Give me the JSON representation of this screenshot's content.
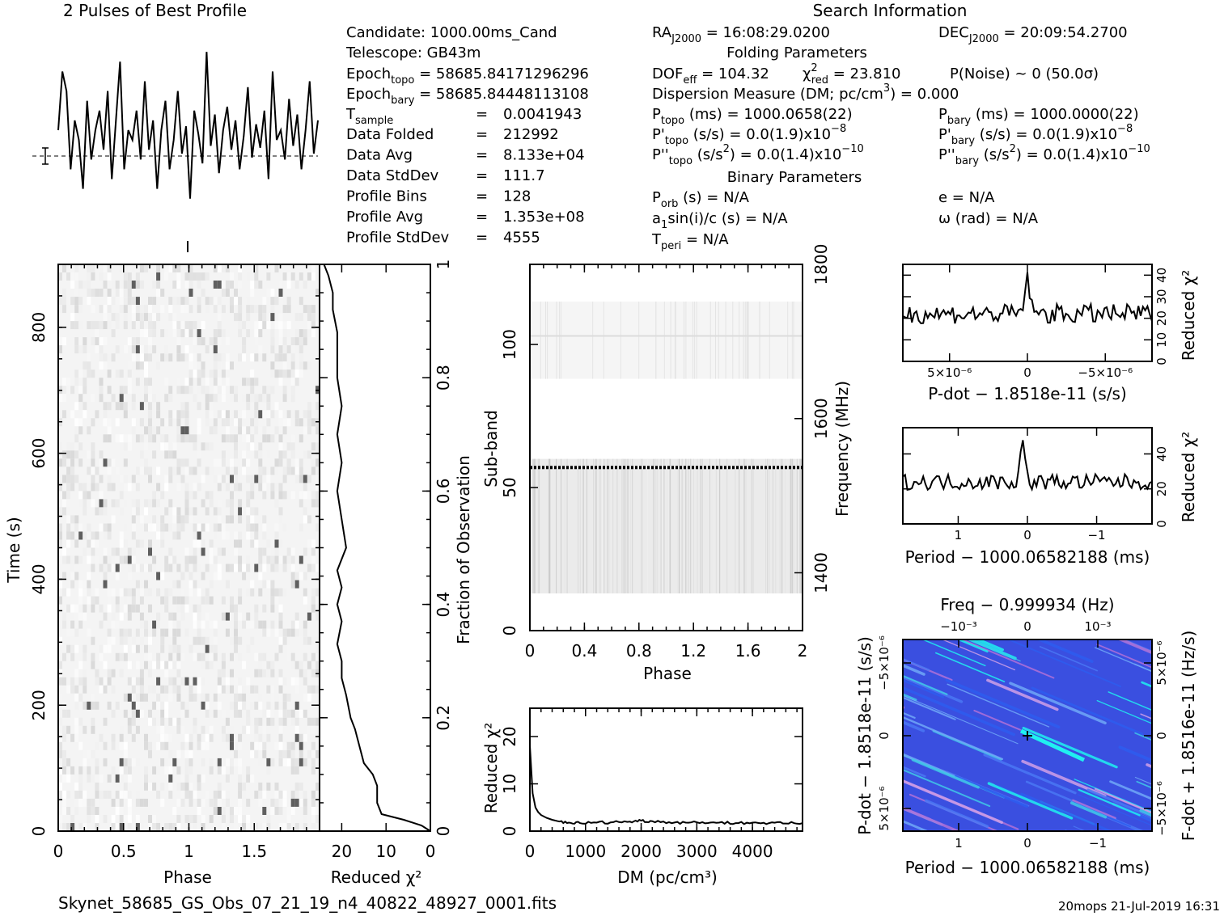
{
  "chart_data": [
    {
      "type": "line",
      "title": "2 Pulses of Best Profile",
      "xlabel": "",
      "ylabel": "",
      "xlim": [
        0,
        2
      ],
      "note": "mean level shown as dashed line with error bar",
      "samples": [
        0.5,
        0.8,
        0.7,
        0.3,
        0.55,
        0.45,
        0.2,
        0.65,
        0.35,
        0.5,
        0.6,
        0.4,
        0.7,
        0.25,
        0.55,
        0.85,
        0.3,
        0.5,
        0.45,
        0.6,
        0.35,
        0.75,
        0.4,
        0.55,
        0.2,
        0.5,
        0.65,
        0.3,
        0.45,
        0.7,
        0.38,
        0.52,
        0.15,
        0.6,
        0.48,
        0.33,
        0.9,
        0.42,
        0.58,
        0.28,
        0.5,
        0.62,
        0.4,
        0.55,
        0.3,
        0.47,
        0.72,
        0.36,
        0.53,
        0.41,
        0.6,
        0.25,
        0.8,
        0.45,
        0.5,
        0.35,
        0.66,
        0.42,
        0.58,
        0.3,
        0.5,
        0.75,
        0.38,
        0.55
      ]
    },
    {
      "type": "heatmap",
      "title": "",
      "xlabel": "Phase",
      "ylabel": "Time (s)",
      "xlim": [
        0,
        2
      ],
      "ylim": [
        0,
        900
      ],
      "x_ticks": [
        "0",
        "0.5",
        "1",
        "1.5"
      ],
      "y_ticks": [
        "0",
        "200",
        "400",
        "600",
        "800"
      ],
      "colormap": "grayscale"
    },
    {
      "type": "line",
      "title": "",
      "xlabel": "Reduced χ²",
      "ylabel": "Fraction of Observation",
      "xlim": [
        25,
        0
      ],
      "ylim": [
        0,
        1
      ],
      "x_ticks": [
        "20",
        "10",
        "0"
      ],
      "y_ticks": [
        "0",
        "0.2",
        "0.4",
        "0.6",
        "0.8",
        "1"
      ],
      "x": [
        0,
        2,
        6,
        11,
        12,
        12,
        13,
        15,
        16,
        17,
        18,
        19,
        20,
        20,
        21,
        20,
        21,
        20,
        21,
        19,
        20,
        21,
        20,
        21,
        20,
        21,
        21,
        21,
        22,
        22,
        23,
        24
      ],
      "y": [
        0,
        0.01,
        0.02,
        0.03,
        0.05,
        0.08,
        0.1,
        0.12,
        0.15,
        0.18,
        0.2,
        0.24,
        0.27,
        0.3,
        0.33,
        0.37,
        0.4,
        0.43,
        0.46,
        0.5,
        0.55,
        0.6,
        0.65,
        0.7,
        0.75,
        0.8,
        0.85,
        0.88,
        0.92,
        0.95,
        0.98,
        1.0
      ]
    },
    {
      "type": "heatmap",
      "title": "",
      "xlabel": "Phase",
      "ylabel": "Sub-band",
      "ylabel_right": "Frequency (MHz)",
      "xlim": [
        0,
        2
      ],
      "ylim": [
        0,
        128
      ],
      "x_ticks": [
        "0",
        "0.4",
        "0.8",
        "1.2",
        "1.6",
        "2"
      ],
      "y_ticks": [
        "0",
        "50",
        "100"
      ],
      "y_ticks_right": [
        "1400",
        "1600",
        "1800"
      ],
      "colormap": "grayscale",
      "bright_row": 57
    },
    {
      "type": "line",
      "title": "",
      "xlabel": "DM (pc/cm³)",
      "ylabel": "Reduced χ²",
      "xlim": [
        0,
        4900
      ],
      "ylim": [
        0,
        26
      ],
      "x_ticks": [
        "0",
        "1000",
        "2000",
        "3000",
        "4000"
      ],
      "y_ticks": [
        "0",
        "10",
        "20"
      ],
      "x": [
        0,
        50,
        100,
        150,
        200,
        300,
        400,
        500,
        700,
        900,
        1200,
        1500,
        1800,
        2000,
        2200,
        2500,
        2800,
        3100,
        3400,
        3700,
        4000,
        4300,
        4600,
        4900
      ],
      "y": [
        18,
        8,
        5,
        4,
        3.4,
        2.8,
        2.4,
        2.1,
        1.8,
        1.7,
        1.8,
        1.9,
        2.0,
        2.2,
        2.1,
        1.9,
        1.8,
        1.9,
        1.8,
        1.7,
        1.8,
        1.7,
        1.6,
        1.7
      ]
    },
    {
      "type": "line",
      "title": "",
      "xlabel": "P-dot − 1.8518e-11 (s/s)",
      "ylabel": "Reduced χ²",
      "xlim": [
        8e-06,
        -8e-06
      ],
      "ylim": [
        0,
        45
      ],
      "x_ticks": [
        "5×10⁻⁶",
        "0",
        "−5×10⁻⁶"
      ],
      "y_ticks": [
        "0",
        "10",
        "20",
        "30",
        "40"
      ],
      "peak": {
        "x": 0,
        "y": 40
      },
      "baseline": 22
    },
    {
      "type": "line",
      "title": "",
      "xlabel": "Period − 1000.06582188 (ms)",
      "ylabel": "Reduced χ²",
      "xlim": [
        1.8,
        -1.8
      ],
      "ylim": [
        0,
        55
      ],
      "x_ticks": [
        "1",
        "0",
        "−1"
      ],
      "y_ticks": [
        "0",
        "20",
        "40"
      ],
      "peak": {
        "x": 0.07,
        "y": 47
      },
      "baseline": 24
    },
    {
      "type": "heatmap",
      "title": "Freq − 0.999934 (Hz)",
      "xlabel": "Period − 1000.06582188 (ms)",
      "ylabel": "P-dot − 1.8518e-11 (s/s)",
      "ylabel_right": "F-dot + 1.8516e-11 (Hz/s)",
      "x_ticks": [
        "1",
        "0",
        "−1"
      ],
      "x_ticks_top": [
        "−10⁻³",
        "0",
        "10⁻³"
      ],
      "y_ticks": [
        "5×10⁻⁶",
        "0",
        "−5×10⁻⁶"
      ],
      "y_ticks_right": [
        "−5×10⁻⁶",
        "0",
        "5×10⁻⁶"
      ],
      "colormap": "blue-cyan-pink",
      "marker": "+"
    }
  ],
  "search_info": {
    "heading": "Search Information",
    "ra_label": "RA",
    "ra_sub": "J2000",
    "ra_value": " = 16:08:29.0200",
    "dec_label": "DEC",
    "dec_sub": "J2000",
    "dec_value": " = 20:09:54.2700"
  },
  "candidate": {
    "candidate": "Candidate:  1000.00ms_Cand",
    "telescope": "Telescope:  GB43m",
    "epoch_topo_label": "Epoch",
    "epoch_topo_sub": "topo",
    "epoch_topo_value": " = 58685.84171296296",
    "epoch_bary_label": "Epoch",
    "epoch_bary_sub": "bary",
    "epoch_bary_value": " = 58685.84448113108",
    "tsample_label": "T",
    "tsample_sub": "sample",
    "tsample_value": "0.0041943",
    "rows": [
      {
        "label": "Data Folded",
        "value": "212992"
      },
      {
        "label": "Data Avg",
        "value": "8.133e+04"
      },
      {
        "label": "Data StdDev",
        "value": "111.7"
      },
      {
        "label": "Profile Bins",
        "value": "128"
      },
      {
        "label": "Profile Avg",
        "value": "1.353e+08"
      },
      {
        "label": "Profile StdDev",
        "value": "4555"
      }
    ],
    "eq": "="
  },
  "folding": {
    "heading": "Folding Parameters",
    "dof_label": "DOF",
    "dof_sub": "eff",
    "dof_value": " = 104.32",
    "chi_label": "χ",
    "chi_sup": "2",
    "chi_sub": "red",
    "chi_value": " = 23.810",
    "pnoise": "P(Noise) ~ 0   (50.0σ)",
    "dm": "Dispersion Measure (DM; pc/cm",
    "dm_sup": "3",
    "dm_value": ") = 0.000",
    "ptopo_label": "P",
    "ptopo_sub": "topo",
    "ptopo_value": " (ms) =  1000.0658(22)",
    "pbary_label": "P",
    "pbary_sub": "bary",
    "pbary_value": " (ms) =  1000.0000(22)",
    "pdtopo_label": "P'",
    "pdtopo_sub": "topo",
    "pdtopo_value": " (s/s) = 0.0(1.9)x10",
    "pdtopo_exp": "−8",
    "pdbary_label": "P'",
    "pdbary_sub": "bary",
    "pdbary_value": " (s/s) = 0.0(1.9)x10",
    "pdbary_exp": "−8",
    "pddtopo_label": "P''",
    "pddtopo_sub": "topo",
    "pddtopo_value": " (s/s",
    "pddtopo_sup": "2",
    "pddtopo_value2": ") = 0.0(1.4)x10",
    "pddtopo_exp": "−10",
    "pddbary_label": "P''",
    "pddbary_sub": "bary",
    "pddbary_value": " (s/s",
    "pddbary_sup": "2",
    "pddbary_value2": ") = 0.0(1.4)x10",
    "pddbary_exp": "−10"
  },
  "binary": {
    "heading": "Binary Parameters",
    "porb_label": "P",
    "porb_sub": "orb",
    "porb_value": " (s) = N/A",
    "e": "e = N/A",
    "a1_label": "a",
    "a1_sub": "1",
    "a1_value": "sin(i)/c (s) = N/A",
    "omega": "ω (rad) = N/A",
    "tperi_label": "T",
    "tperi_sub": "peri",
    "tperi_value": " = N/A"
  },
  "footer": {
    "filename": "Skynet_58685_GS_Obs_07_21_19_n4_40822_48927_0001.fits",
    "stamp": "20mops 21-Jul-2019 16:31"
  }
}
